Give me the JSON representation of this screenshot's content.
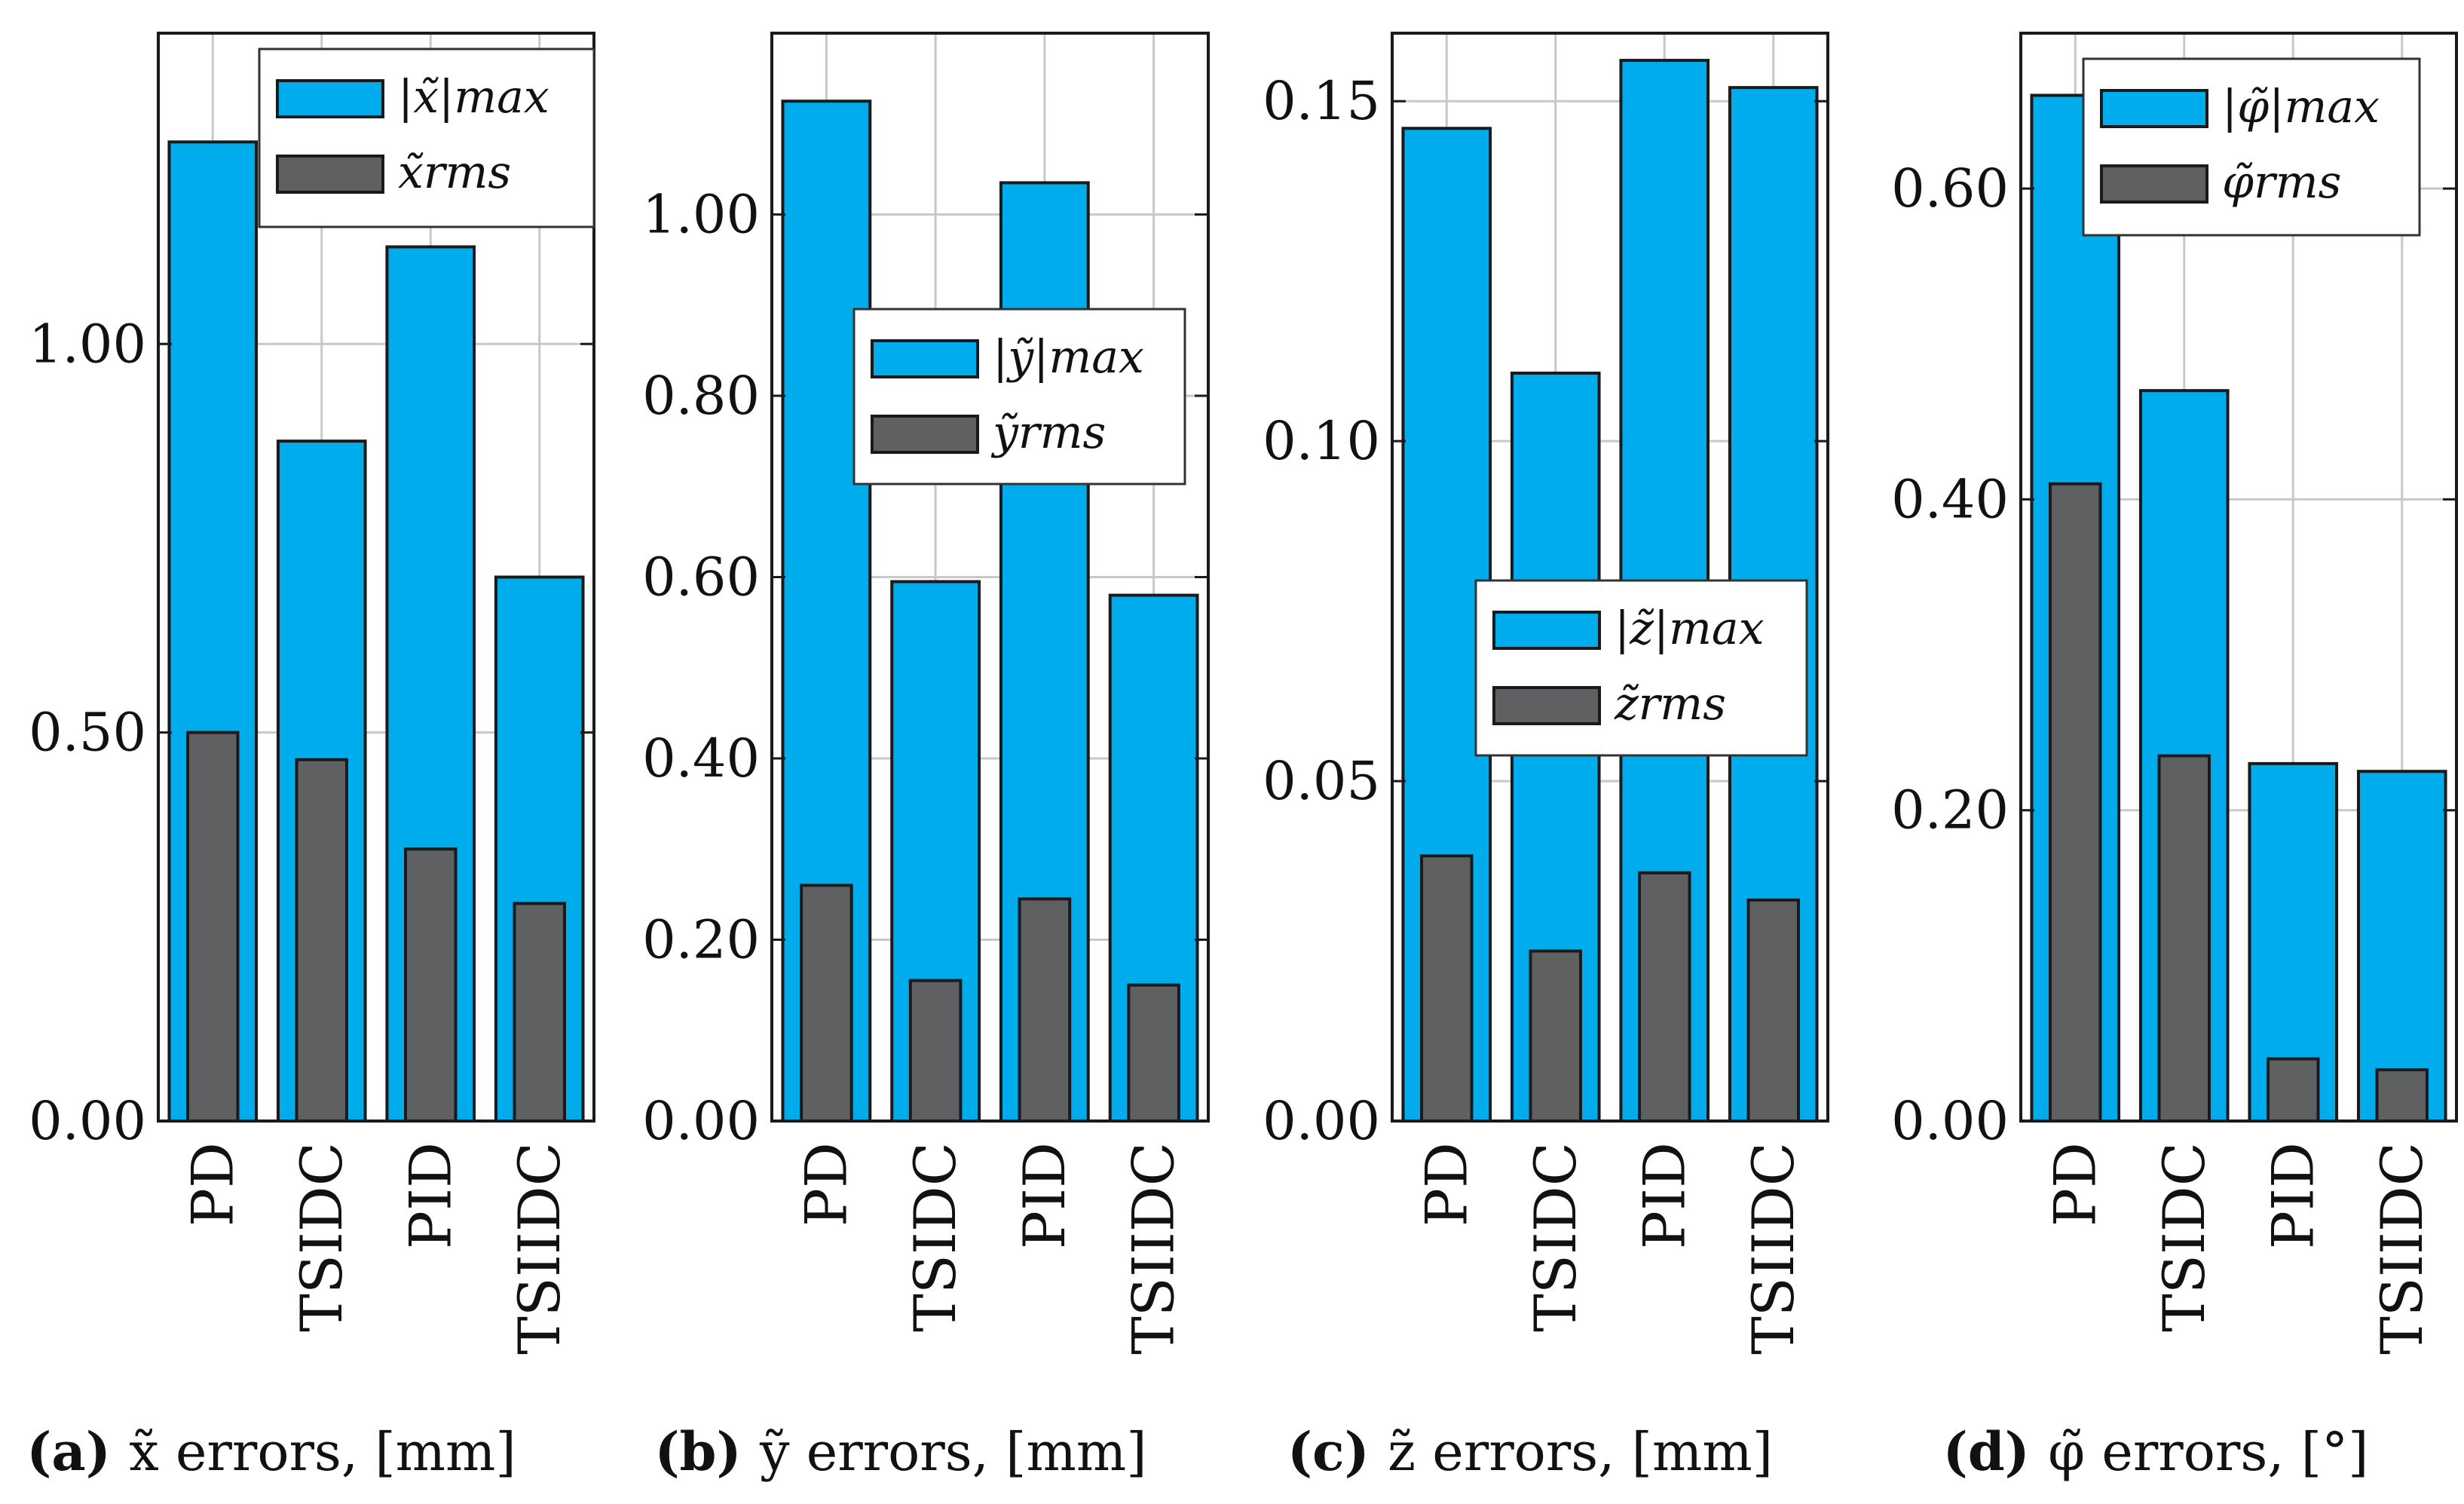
{
  "colors": {
    "max": "#00acec",
    "rms": "#5e6062",
    "grid": "#c8c8c8",
    "edge": "#1a1a1a"
  },
  "chart_data": [
    {
      "type": "bar",
      "id": "a",
      "caption": {
        "label": "(a)",
        "text": "x̃ errors, [mm]"
      },
      "categories": [
        "PD",
        "TSIDC",
        "PID",
        "TSIIDC"
      ],
      "series": [
        {
          "name": "|x̃|max",
          "values": [
            1.26,
            0.875,
            1.125,
            0.7
          ]
        },
        {
          "name": "x̃rms",
          "values": [
            0.5,
            0.465,
            0.35,
            0.28
          ]
        }
      ],
      "ylim": [
        0,
        1.4
      ],
      "ticks": [
        0.0,
        0.5,
        1.0
      ],
      "tick_labels": [
        "0.00",
        "0.50",
        "1.00"
      ],
      "legend": "top-right",
      "grid": true
    },
    {
      "type": "bar",
      "id": "b",
      "caption": {
        "label": "(b)",
        "text": "ỹ errors, [mm]"
      },
      "categories": [
        "PD",
        "TSIDC",
        "PID",
        "TSIIDC"
      ],
      "series": [
        {
          "name": "|ỹ|max",
          "values": [
            1.125,
            0.595,
            1.035,
            0.58
          ]
        },
        {
          "name": "ỹrms",
          "values": [
            0.26,
            0.155,
            0.245,
            0.15
          ]
        }
      ],
      "ylim": [
        0,
        1.2
      ],
      "ticks": [
        0.0,
        0.2,
        0.4,
        0.6,
        0.8,
        1.0
      ],
      "tick_labels": [
        "0.00",
        "0.20",
        "0.40",
        "0.60",
        "0.80",
        "1.00"
      ],
      "legend": "center-right",
      "grid": true
    },
    {
      "type": "bar",
      "id": "c",
      "caption": {
        "label": "(c)",
        "text": "z̃ errors, [mm]"
      },
      "categories": [
        "PD",
        "TSIDC",
        "PID",
        "TSIIDC"
      ],
      "series": [
        {
          "name": "|z̃|max",
          "values": [
            0.146,
            0.11,
            0.156,
            0.152
          ]
        },
        {
          "name": "z̃rms",
          "values": [
            0.039,
            0.025,
            0.0365,
            0.0325
          ]
        }
      ],
      "ylim": [
        0,
        0.16
      ],
      "ticks": [
        0.0,
        0.05,
        0.1,
        0.15
      ],
      "tick_labels": [
        "0.00",
        "0.05",
        "0.10",
        "0.15"
      ],
      "legend": "lower-right",
      "grid": true
    },
    {
      "type": "bar",
      "id": "d",
      "caption": {
        "label": "(d)",
        "text": "φ̃ errors, [°]"
      },
      "categories": [
        "PD",
        "TSIDC",
        "PID",
        "TSIIDC"
      ],
      "series": [
        {
          "name": "|φ̃|max",
          "values": [
            0.66,
            0.47,
            0.23,
            0.225
          ]
        },
        {
          "name": "φ̃rms",
          "values": [
            0.41,
            0.235,
            0.04,
            0.033
          ]
        }
      ],
      "ylim": [
        0,
        0.7
      ],
      "ticks": [
        0.0,
        0.2,
        0.4,
        0.6
      ],
      "tick_labels": [
        "0.00",
        "0.20",
        "0.40",
        "0.60"
      ],
      "legend": "top-right",
      "grid": true
    }
  ]
}
